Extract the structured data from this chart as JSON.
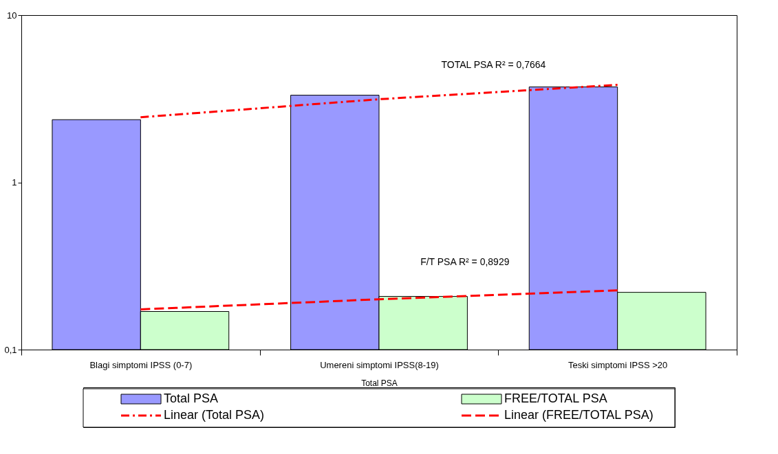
{
  "chart_data": {
    "type": "bar",
    "xlabel": "Total PSA",
    "categories": [
      "Blagi simptomi IPSS (0-7)",
      "Umereni simptomi IPSS(8-19)",
      "Teski simptomi IPSS >20"
    ],
    "series": [
      {
        "name": "Total PSA",
        "color": "#9999ff",
        "values": [
          2.37,
          3.32,
          3.72
        ]
      },
      {
        "name": "FREE/TOTAL PSA",
        "color": "#ccffcc",
        "values": [
          0.169,
          0.208,
          0.22
        ]
      },
      {
        "name": "Linear (Total PSA)",
        "type": "line",
        "color": "#ff0000",
        "line_style": "dotted",
        "values": [
          2.45,
          3.14,
          3.83
        ]
      },
      {
        "name": "Linear (FREE/TOTAL PSA)",
        "type": "line",
        "color": "#ff0000",
        "line_style": "dashed",
        "values": [
          0.174,
          0.2,
          0.226
        ]
      }
    ],
    "log": true,
    "ylim": [
      0.1,
      10
    ],
    "yticks": [
      {
        "value": 0.1,
        "label": "0,1"
      },
      1,
      10
    ],
    "grid": false,
    "legend": "bottom",
    "annotations": [
      "TOTAL PSA   R² = 0,7664",
      "F/T PSA R² = 0,8929"
    ]
  }
}
